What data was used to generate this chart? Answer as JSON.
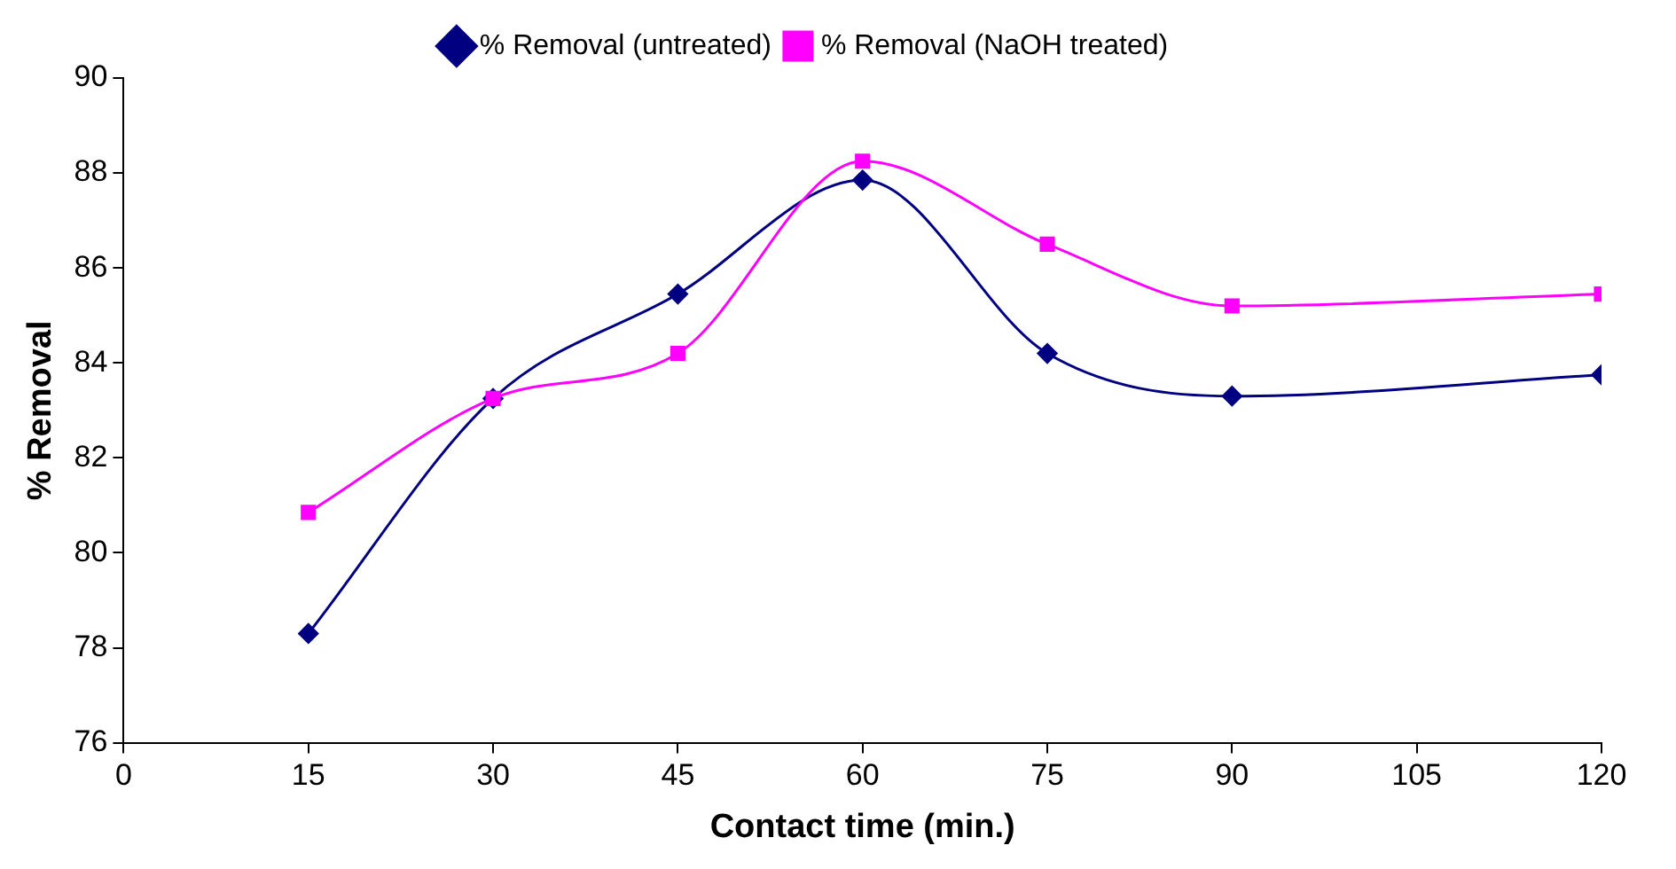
{
  "chart_data": {
    "type": "line",
    "xlabel": "Contact time (min.)",
    "ylabel": "% Removal",
    "x": [
      15,
      30,
      45,
      60,
      75,
      90,
      120
    ],
    "series": [
      {
        "name": "% Removal (untreated)",
        "color": "#000080",
        "marker": "diamond",
        "values": [
          78.3,
          83.25,
          85.45,
          87.85,
          84.2,
          83.3,
          83.75
        ]
      },
      {
        "name": "% Removal (NaOH treated)",
        "color": "#ff00ff",
        "marker": "square",
        "values": [
          80.85,
          83.25,
          84.2,
          88.25,
          86.5,
          85.2,
          85.45
        ]
      }
    ],
    "xlim": [
      0,
      120
    ],
    "xticks": [
      0,
      15,
      30,
      45,
      60,
      75,
      90,
      105,
      120
    ],
    "ylim": [
      76,
      90
    ],
    "yticks": [
      76,
      78,
      80,
      82,
      84,
      86,
      88,
      90
    ],
    "grid": false,
    "legend": "top"
  }
}
